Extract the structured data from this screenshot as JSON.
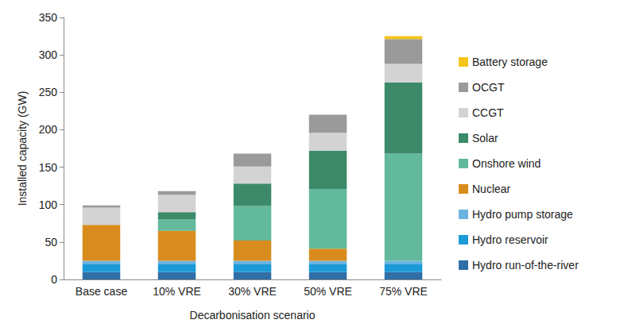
{
  "chart_data": {
    "type": "bar",
    "stacked": true,
    "x_label": "Decarbonisation scenario",
    "y_label": "Installed capacity (GW)",
    "categories": [
      "Base case",
      "10% VRE",
      "30% VRE",
      "50% VRE",
      "75% VRE"
    ],
    "series": [
      {
        "name": "Hydro run-of-the-river",
        "color": "#2f6ea6",
        "values": [
          10,
          10,
          10,
          10,
          10
        ]
      },
      {
        "name": "Hydro reservoir",
        "color": "#1b9ad8",
        "values": [
          11,
          11,
          11,
          11,
          11
        ]
      },
      {
        "name": "Hydro pump storage",
        "color": "#6db3e0",
        "values": [
          4,
          4,
          4,
          4,
          4
        ]
      },
      {
        "name": "Nuclear",
        "color": "#d98c1e",
        "values": [
          48,
          40,
          27,
          16,
          0
        ]
      },
      {
        "name": "Onshore wind",
        "color": "#62b99b",
        "values": [
          0,
          15,
          46,
          80,
          143
        ]
      },
      {
        "name": "Solar",
        "color": "#3c8a69",
        "values": [
          0,
          10,
          30,
          51,
          95
        ]
      },
      {
        "name": "CCGT",
        "color": "#d3d3d3",
        "values": [
          23,
          23,
          23,
          24,
          25
        ]
      },
      {
        "name": "OCGT",
        "color": "#9a9a9a",
        "values": [
          3,
          5,
          17,
          24,
          33
        ]
      },
      {
        "name": "Battery storage",
        "color": "#f4c51a",
        "values": [
          0,
          0,
          0,
          0,
          4
        ]
      }
    ],
    "ylim": [
      0,
      350
    ],
    "yticks": [
      0,
      50,
      100,
      150,
      200,
      250,
      300,
      350
    ],
    "grid": false,
    "legend": "right"
  }
}
